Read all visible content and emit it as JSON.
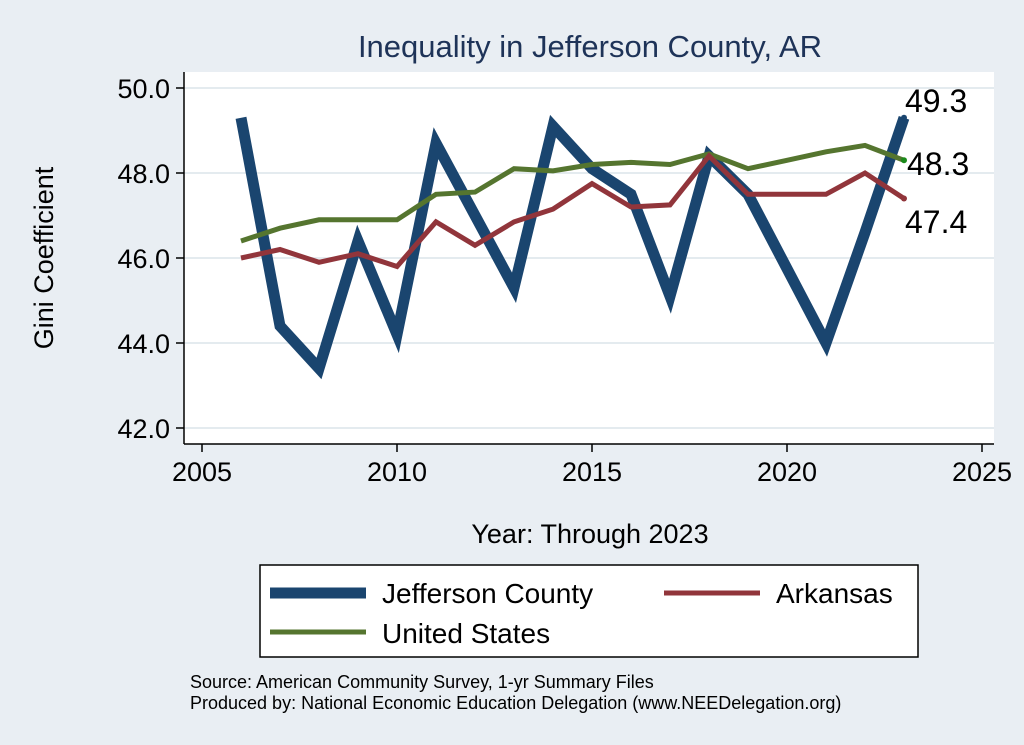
{
  "chart_data": {
    "type": "line",
    "title": "Inequality in Jefferson County, AR",
    "xlabel": "Year: Through 2023",
    "ylabel": "Gini Coefficient",
    "xlim": [
      2005,
      2025
    ],
    "ylim": [
      42,
      50
    ],
    "xticks": [
      2005,
      2010,
      2015,
      2020,
      2025
    ],
    "yticks": [
      42,
      44,
      46,
      48,
      50
    ],
    "ytick_labels": [
      "42.0",
      "44.0",
      "46.0",
      "48.0",
      "50.0"
    ],
    "grid": true,
    "legend_position": "bottom",
    "series": [
      {
        "name": "Jefferson County",
        "color": "#1a456f",
        "x": [
          2006,
          2007,
          2008,
          2009,
          2010,
          2011,
          2012,
          2013,
          2014,
          2015,
          2016,
          2017,
          2018,
          2019,
          2021,
          2022,
          2023
        ],
        "values": [
          49.3,
          44.4,
          43.4,
          46.4,
          44.2,
          48.7,
          47.0,
          45.3,
          49.1,
          48.1,
          47.5,
          45.1,
          48.4,
          47.5,
          44.0,
          46.6,
          49.3
        ],
        "end_label": "49.3"
      },
      {
        "name": "Arkansas",
        "color": "#91353b",
        "x": [
          2006,
          2007,
          2008,
          2009,
          2010,
          2011,
          2012,
          2013,
          2014,
          2015,
          2016,
          2017,
          2018,
          2019,
          2020,
          2021,
          2022,
          2023
        ],
        "values": [
          46.0,
          46.2,
          45.9,
          46.1,
          45.8,
          46.85,
          46.3,
          46.85,
          47.15,
          47.75,
          47.2,
          47.25,
          48.4,
          47.5,
          47.5,
          47.5,
          48.0,
          47.4
        ],
        "end_label": "47.4"
      },
      {
        "name": "United States",
        "color": "#55752f",
        "x": [
          2006,
          2007,
          2008,
          2009,
          2010,
          2011,
          2012,
          2013,
          2014,
          2015,
          2016,
          2017,
          2018,
          2019,
          2020,
          2021,
          2022,
          2023
        ],
        "values": [
          46.4,
          46.7,
          46.9,
          46.9,
          46.9,
          47.5,
          47.55,
          48.1,
          48.05,
          48.2,
          48.25,
          48.2,
          48.45,
          48.1,
          48.3,
          48.5,
          48.65,
          48.3
        ],
        "end_label": "48.3"
      }
    ],
    "source_lines": [
      "Source: American Community Survey, 1-yr Summary Files",
      "Produced by: National Economic Education Delegation (www.NEEDelegation.org)"
    ]
  }
}
